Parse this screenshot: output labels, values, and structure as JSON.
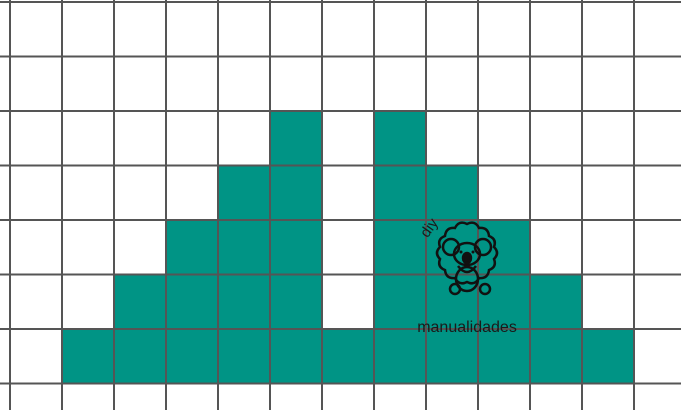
{
  "grid": {
    "columns": 13,
    "rows": 8,
    "fill_color": "#009485",
    "line_color": "#555555",
    "filled_cells": [
      [
        5,
        2
      ],
      [
        7,
        2
      ],
      [
        4,
        3
      ],
      [
        5,
        3
      ],
      [
        7,
        3
      ],
      [
        8,
        3
      ],
      [
        3,
        4
      ],
      [
        4,
        4
      ],
      [
        5,
        4
      ],
      [
        7,
        4
      ],
      [
        8,
        4
      ],
      [
        9,
        4
      ],
      [
        2,
        5
      ],
      [
        3,
        5
      ],
      [
        4,
        5
      ],
      [
        5,
        5
      ],
      [
        7,
        5
      ],
      [
        8,
        5
      ],
      [
        9,
        5
      ],
      [
        10,
        5
      ],
      [
        1,
        6
      ],
      [
        2,
        6
      ],
      [
        3,
        6
      ],
      [
        4,
        6
      ],
      [
        5,
        6
      ],
      [
        6,
        6
      ],
      [
        7,
        6
      ],
      [
        8,
        6
      ],
      [
        9,
        6
      ],
      [
        10,
        6
      ],
      [
        11,
        6
      ]
    ]
  },
  "watermark": {
    "top_text": "diy",
    "bottom_text": "manualidades",
    "icon": "koala-logo"
  }
}
